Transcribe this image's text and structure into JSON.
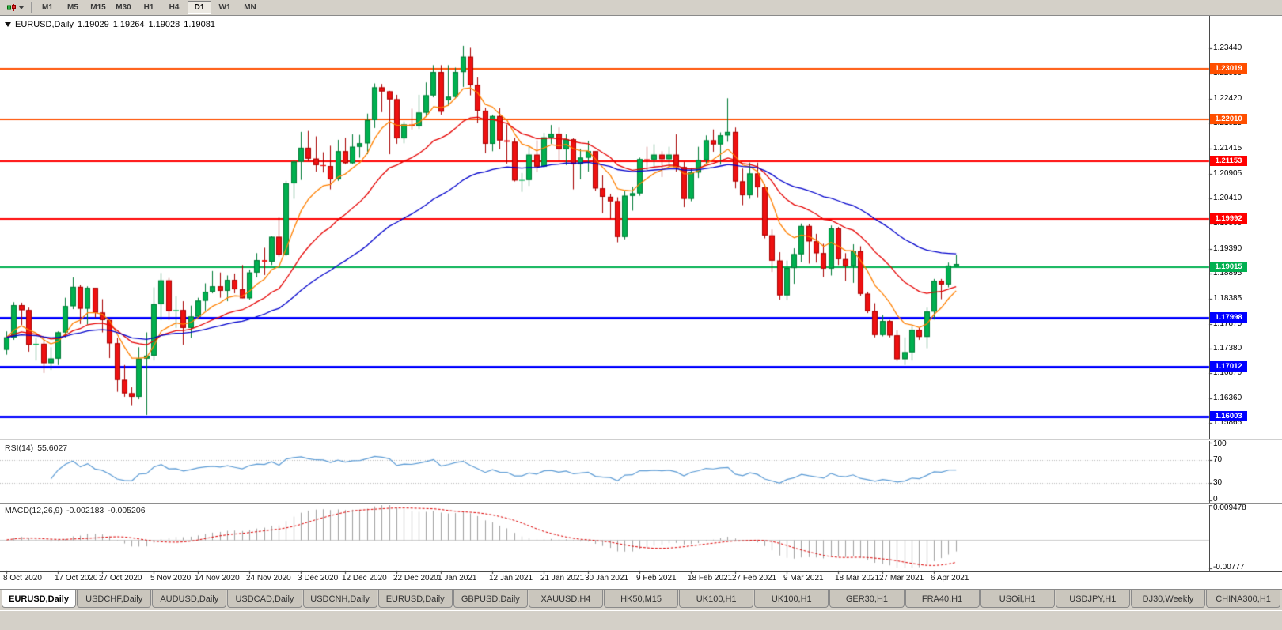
{
  "toolbar": {
    "timeframes": [
      "M1",
      "M5",
      "M15",
      "M30",
      "H1",
      "H4",
      "D1",
      "W1",
      "MN"
    ],
    "active_timeframe": "D1"
  },
  "chart": {
    "symbol_period": "EURUSD,Daily",
    "open": "1.19029",
    "high": "1.19264",
    "low": "1.19028",
    "close": "1.19081"
  },
  "indicators": {
    "rsi": {
      "label": "RSI(14)",
      "value": "55.6027"
    },
    "macd": {
      "label": "MACD(12,26,9)",
      "value": "-0.002183",
      "signal": "-0.005206"
    }
  },
  "tabs": {
    "active_index": 0,
    "items": [
      "EURUSD,Daily",
      "USDCHF,Daily",
      "AUDUSD,Daily",
      "USDCAD,Daily",
      "USDCNH,Daily",
      "EURUSD,Daily",
      "GBPUSD,Daily",
      "XAUUSD,H4",
      "HK50,M15",
      "UK100,H1",
      "UK100,H1",
      "GER30,H1",
      "FRA40,H1",
      "USOil,H1",
      "USDJPY,H1",
      "DJ30,Weekly",
      "CHINA300,H1"
    ]
  },
  "chart_data": {
    "type": "candlestick",
    "symbol": "EURUSD",
    "period": "Daily",
    "price_axis": {
      "max": 1.24,
      "min": 1.156,
      "ticks": [
        "1.23440",
        "1.22930",
        "1.22420",
        "1.21925",
        "1.21415",
        "1.20905",
        "1.20410",
        "1.19900",
        "1.19390",
        "1.18895",
        "1.18385",
        "1.17875",
        "1.17380",
        "1.16870",
        "1.16360",
        "1.15865"
      ]
    },
    "x_axis": {
      "ticks": [
        {
          "label": "8 Oct 2020",
          "i": 0
        },
        {
          "label": "17 Oct 2020",
          "i": 7
        },
        {
          "label": "27 Oct 2020",
          "i": 13
        },
        {
          "label": "5 Nov 2020",
          "i": 20
        },
        {
          "label": "14 Nov 2020",
          "i": 26
        },
        {
          "label": "24 Nov 2020",
          "i": 33
        },
        {
          "label": "3 Dec 2020",
          "i": 40
        },
        {
          "label": "12 Dec 2020",
          "i": 46
        },
        {
          "label": "22 Dec 2020",
          "i": 53
        },
        {
          "label": "1 Jan 2021",
          "i": 59
        },
        {
          "label": "12 Jan 2021",
          "i": 66
        },
        {
          "label": "21 Jan 2021",
          "i": 73
        },
        {
          "label": "30 Jan 2021",
          "i": 79
        },
        {
          "label": "9 Feb 2021",
          "i": 86
        },
        {
          "label": "18 Feb 2021",
          "i": 93
        },
        {
          "label": "27 Feb 2021",
          "i": 99
        },
        {
          "label": "9 Mar 2021",
          "i": 106
        },
        {
          "label": "18 Mar 2021",
          "i": 113
        },
        {
          "label": "27 Mar 2021",
          "i": 119
        },
        {
          "label": "6 Apr 2021",
          "i": 126
        }
      ]
    },
    "levels": [
      {
        "price": 1.23019,
        "color": "#ff4f00",
        "width": 2
      },
      {
        "price": 1.2201,
        "color": "#ff4f00",
        "width": 2
      },
      {
        "price": 1.21153,
        "color": "#ff0000",
        "width": 2
      },
      {
        "price": 1.19992,
        "color": "#ff0000",
        "width": 2
      },
      {
        "price": 1.19015,
        "color": "#00b050",
        "width": 2
      },
      {
        "price": 1.17998,
        "color": "#0000ff",
        "width": 3
      },
      {
        "price": 1.17012,
        "color": "#0000ff",
        "width": 3
      },
      {
        "price": 1.16003,
        "color": "#0000ff",
        "width": 3
      }
    ],
    "moving_averages": [
      {
        "period": 8,
        "color": "#ff8000"
      },
      {
        "period": 20,
        "color": "#e60000"
      },
      {
        "period": 45,
        "color": "#0000cc"
      }
    ],
    "rsi": {
      "period": 14,
      "levels": [
        70,
        30
      ],
      "axis_labels": [
        "100",
        "70",
        "30",
        "0"
      ],
      "color": "#5b9bd5"
    },
    "macd": {
      "fast": 12,
      "slow": 26,
      "signal": 9,
      "range": [
        0.009478,
        -0.00777
      ],
      "axis_labels": [
        "0.009478",
        "-0.00777"
      ],
      "hist_color": "#a0a0a0",
      "signal_color": "#dd0000"
    },
    "colors": {
      "up": "#00b050",
      "up_border": "#007a35",
      "down": "#ee1111",
      "down_border": "#a80000"
    },
    "candles": [
      [
        1.1735,
        1.1772,
        1.1725,
        1.176
      ],
      [
        1.176,
        1.1831,
        1.1755,
        1.1825
      ],
      [
        1.1825,
        1.183,
        1.1785,
        1.1815
      ],
      [
        1.1815,
        1.182,
        1.1731,
        1.1745
      ],
      [
        1.1745,
        1.1758,
        1.1713,
        1.1747
      ],
      [
        1.1747,
        1.1758,
        1.1688,
        1.1708
      ],
      [
        1.1708,
        1.174,
        1.1694,
        1.1717
      ],
      [
        1.1717,
        1.1772,
        1.1704,
        1.177
      ],
      [
        1.177,
        1.184,
        1.176,
        1.1823
      ],
      [
        1.1823,
        1.1881,
        1.1817,
        1.1862
      ],
      [
        1.1862,
        1.1866,
        1.1787,
        1.1818
      ],
      [
        1.1818,
        1.1863,
        1.1786,
        1.186
      ],
      [
        1.186,
        1.186,
        1.18,
        1.181
      ],
      [
        1.181,
        1.1837,
        1.177,
        1.1795
      ],
      [
        1.1795,
        1.1796,
        1.1718,
        1.1748
      ],
      [
        1.1748,
        1.1759,
        1.165,
        1.1674
      ],
      [
        1.1674,
        1.1704,
        1.164,
        1.1647
      ],
      [
        1.1647,
        1.1659,
        1.1623,
        1.164
      ],
      [
        1.164,
        1.174,
        1.1635,
        1.1717
      ],
      [
        1.1717,
        1.177,
        1.1603,
        1.1723
      ],
      [
        1.1723,
        1.1861,
        1.1713,
        1.1827
      ],
      [
        1.1827,
        1.189,
        1.1795,
        1.1875
      ],
      [
        1.1875,
        1.188,
        1.1795,
        1.1813
      ],
      [
        1.1813,
        1.1843,
        1.1779,
        1.1815
      ],
      [
        1.1815,
        1.1833,
        1.1745,
        1.1779
      ],
      [
        1.1779,
        1.1824,
        1.1759,
        1.1802
      ],
      [
        1.1802,
        1.184,
        1.1799,
        1.1834
      ],
      [
        1.1834,
        1.1869,
        1.1814,
        1.1852
      ],
      [
        1.1852,
        1.1894,
        1.1849,
        1.1863
      ],
      [
        1.1863,
        1.1891,
        1.184,
        1.1854
      ],
      [
        1.1854,
        1.1885,
        1.1833,
        1.1876
      ],
      [
        1.1876,
        1.1889,
        1.1849,
        1.1857
      ],
      [
        1.1857,
        1.1906,
        1.1839,
        1.1839
      ],
      [
        1.1839,
        1.1897,
        1.1836,
        1.1891
      ],
      [
        1.1891,
        1.193,
        1.1881,
        1.1916
      ],
      [
        1.1916,
        1.1941,
        1.1886,
        1.1913
      ],
      [
        1.1913,
        1.1964,
        1.1906,
        1.1963
      ],
      [
        1.1963,
        1.2003,
        1.1923,
        1.1927
      ],
      [
        1.1927,
        1.2076,
        1.1924,
        1.2071
      ],
      [
        1.2071,
        1.2118,
        1.204,
        1.2115
      ],
      [
        1.2115,
        1.2175,
        1.2078,
        1.2143
      ],
      [
        1.2143,
        1.2177,
        1.2116,
        1.2121
      ],
      [
        1.2121,
        1.2166,
        1.2095,
        1.2108
      ],
      [
        1.2108,
        1.2134,
        1.2093,
        1.2106
      ],
      [
        1.2106,
        1.2147,
        1.2059,
        1.2079
      ],
      [
        1.2079,
        1.2159,
        1.2076,
        1.2136
      ],
      [
        1.2136,
        1.2163,
        1.211,
        1.2112
      ],
      [
        1.2112,
        1.217,
        1.211,
        1.2145
      ],
      [
        1.2145,
        1.2169,
        1.2123,
        1.2152
      ],
      [
        1.2152,
        1.2212,
        1.213,
        1.2199
      ],
      [
        1.2199,
        1.2273,
        1.2183,
        1.2265
      ],
      [
        1.2265,
        1.2272,
        1.2215,
        1.2257
      ],
      [
        1.2257,
        1.2258,
        1.213,
        1.2241
      ],
      [
        1.2241,
        1.225,
        1.2151,
        1.2162
      ],
      [
        1.2162,
        1.2196,
        1.2152,
        1.219
      ],
      [
        1.219,
        1.2222,
        1.218,
        1.2187
      ],
      [
        1.2187,
        1.225,
        1.2181,
        1.2214
      ],
      [
        1.2214,
        1.2275,
        1.2207,
        1.2249
      ],
      [
        1.2249,
        1.231,
        1.2245,
        1.2296
      ],
      [
        1.2296,
        1.231,
        1.221,
        1.2216
      ],
      [
        1.2239,
        1.231,
        1.2228,
        1.2246
      ],
      [
        1.2246,
        1.2305,
        1.2244,
        1.2296
      ],
      [
        1.2296,
        1.2349,
        1.2266,
        1.2327
      ],
      [
        1.2327,
        1.2345,
        1.2249,
        1.227
      ],
      [
        1.227,
        1.2285,
        1.2193,
        1.2218
      ],
      [
        1.2218,
        1.2224,
        1.2132,
        1.2151
      ],
      [
        1.2151,
        1.221,
        1.2136,
        1.2207
      ],
      [
        1.2207,
        1.2223,
        1.214,
        1.2158
      ],
      [
        1.2158,
        1.219,
        1.2111,
        1.2155
      ],
      [
        1.2155,
        1.2163,
        1.2075,
        1.2077
      ],
      [
        1.2077,
        1.2092,
        1.2054,
        1.2078
      ],
      [
        1.2078,
        1.2145,
        1.2066,
        1.2129
      ],
      [
        1.2129,
        1.2158,
        1.2094,
        1.2105
      ],
      [
        1.2105,
        1.2173,
        1.2102,
        1.2164
      ],
      [
        1.2164,
        1.2189,
        1.2151,
        1.2171
      ],
      [
        1.2171,
        1.2184,
        1.2116,
        1.214
      ],
      [
        1.214,
        1.217,
        1.2108,
        1.216
      ],
      [
        1.216,
        1.2162,
        1.2059,
        1.211
      ],
      [
        1.211,
        1.2141,
        1.2079,
        1.2123
      ],
      [
        1.2123,
        1.2157,
        1.2095,
        1.2136
      ],
      [
        1.2136,
        1.2136,
        1.2056,
        1.2061
      ],
      [
        1.2061,
        1.2087,
        1.2011,
        1.2044
      ],
      [
        1.2044,
        1.205,
        1.1999,
        1.2035
      ],
      [
        1.2035,
        1.2043,
        1.1952,
        1.1963
      ],
      [
        1.1963,
        1.2055,
        1.1958,
        1.2046
      ],
      [
        1.2046,
        1.2064,
        1.2016,
        1.2051
      ],
      [
        1.2051,
        1.2123,
        1.2046,
        1.212
      ],
      [
        1.212,
        1.2145,
        1.2097,
        1.2119
      ],
      [
        1.2119,
        1.215,
        1.2106,
        1.2129
      ],
      [
        1.2129,
        1.2136,
        1.2084,
        1.212
      ],
      [
        1.212,
        1.2145,
        1.21,
        1.2129
      ],
      [
        1.2129,
        1.217,
        1.2095,
        1.2104
      ],
      [
        1.2104,
        1.2114,
        1.2023,
        1.204
      ],
      [
        1.204,
        1.2102,
        1.2035,
        1.2093
      ],
      [
        1.2093,
        1.2145,
        1.2082,
        1.2118
      ],
      [
        1.2118,
        1.2168,
        1.211,
        1.2158
      ],
      [
        1.2158,
        1.218,
        1.2135,
        1.215
      ],
      [
        1.215,
        1.2174,
        1.2109,
        1.2168
      ],
      [
        1.2168,
        1.2243,
        1.2155,
        1.2175
      ],
      [
        1.2175,
        1.2184,
        1.2061,
        1.2075
      ],
      [
        1.2075,
        1.2101,
        1.2027,
        1.2047
      ],
      [
        1.2047,
        1.2113,
        1.204,
        1.2091
      ],
      [
        1.2091,
        1.2113,
        1.2043,
        1.2063
      ],
      [
        1.2063,
        1.2069,
        1.196,
        1.1966
      ],
      [
        1.1966,
        1.1978,
        1.1892,
        1.1915
      ],
      [
        1.1915,
        1.1932,
        1.1836,
        1.1845
      ],
      [
        1.1845,
        1.1915,
        1.1835,
        1.19
      ],
      [
        1.19,
        1.194,
        1.1868,
        1.1928
      ],
      [
        1.1928,
        1.199,
        1.1912,
        1.1985
      ],
      [
        1.1985,
        1.1989,
        1.1909,
        1.1954
      ],
      [
        1.1954,
        1.1969,
        1.1911,
        1.193
      ],
      [
        1.193,
        1.1949,
        1.1882,
        1.1899
      ],
      [
        1.1899,
        1.1986,
        1.1885,
        1.198
      ],
      [
        1.198,
        1.1983,
        1.1906,
        1.1918
      ],
      [
        1.1918,
        1.193,
        1.1874,
        1.1904
      ],
      [
        1.1904,
        1.1948,
        1.187,
        1.1934
      ],
      [
        1.1934,
        1.1944,
        1.1844,
        1.1848
      ],
      [
        1.1848,
        1.1852,
        1.1809,
        1.1813
      ],
      [
        1.1813,
        1.1829,
        1.176,
        1.1765
      ],
      [
        1.1765,
        1.1805,
        1.1762,
        1.1793
      ],
      [
        1.1793,
        1.1795,
        1.176,
        1.1764
      ],
      [
        1.1764,
        1.1774,
        1.1712,
        1.1716
      ],
      [
        1.1716,
        1.176,
        1.1704,
        1.173
      ],
      [
        1.173,
        1.1782,
        1.1713,
        1.1775
      ],
      [
        1.1775,
        1.178,
        1.1755,
        1.1761
      ],
      [
        1.1761,
        1.182,
        1.1738,
        1.1812
      ],
      [
        1.1812,
        1.1878,
        1.1796,
        1.1874
      ],
      [
        1.1874,
        1.1878,
        1.1837,
        1.1867
      ],
      [
        1.1867,
        1.1911,
        1.1861,
        1.1905
      ],
      [
        1.19029,
        1.19264,
        1.19028,
        1.19081
      ]
    ]
  }
}
